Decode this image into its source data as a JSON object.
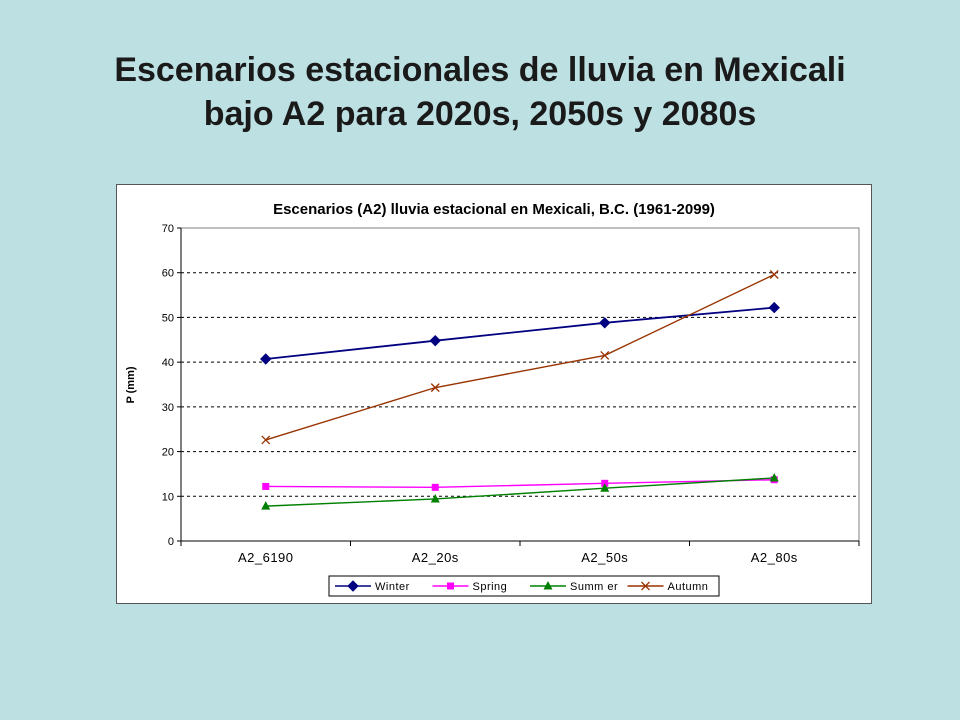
{
  "slide": {
    "title_line1": "Escenarios estacionales de lluvia en Mexicali",
    "title_line2": "bajo A2 para 2020s, 2050s y 2080s"
  },
  "chart_data": {
    "type": "line",
    "title": "Escenarios (A2) lluvia estacional en Mexicali, B.C. (1961-2099)",
    "xlabel": "",
    "ylabel": "P (mm)",
    "ylim": [
      0,
      70
    ],
    "yticks": [
      0,
      10,
      20,
      30,
      40,
      50,
      60,
      70
    ],
    "grid": true,
    "legend_position": "bottom",
    "categories": [
      "A2_6190",
      "A2_20s",
      "A2_50s",
      "A2_80s"
    ],
    "series": [
      {
        "name": "Winter",
        "color": "#000080",
        "marker": "diamond",
        "values": [
          40.7,
          44.8,
          48.8,
          52.2
        ]
      },
      {
        "name": "Spring",
        "color": "#ff00ff",
        "marker": "square",
        "values": [
          12.2,
          12.0,
          12.9,
          13.7
        ]
      },
      {
        "name": "Summ er",
        "color": "#008000",
        "marker": "triangle",
        "values": [
          7.8,
          9.4,
          11.8,
          14.1
        ]
      },
      {
        "name": "Autumn",
        "color": "#993300",
        "marker": "x",
        "values": [
          22.6,
          34.3,
          41.5,
          59.6
        ]
      }
    ]
  }
}
